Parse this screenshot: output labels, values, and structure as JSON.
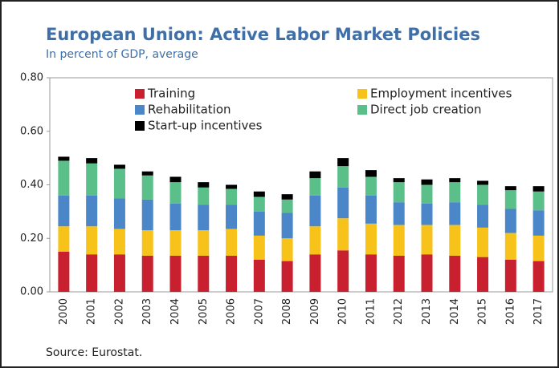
{
  "chart_data": {
    "type": "stacked_bar",
    "title": "European Union: Active Labor Market Policies",
    "subtitle": "In percent of GDP, average",
    "source": "Source: Eurostat.",
    "categories": [
      "2000",
      "2001",
      "2002",
      "2003",
      "2004",
      "2005",
      "2006",
      "2007",
      "2008",
      "2009",
      "2010",
      "2011",
      "2012",
      "2013",
      "2014",
      "2015",
      "2016",
      "2017"
    ],
    "series": [
      {
        "name": "Training",
        "color": "#c8202f",
        "values": [
          0.15,
          0.14,
          0.14,
          0.135,
          0.135,
          0.135,
          0.135,
          0.12,
          0.115,
          0.14,
          0.155,
          0.14,
          0.135,
          0.14,
          0.135,
          0.13,
          0.12,
          0.115
        ]
      },
      {
        "name": "Employment incentives",
        "color": "#f7c21a",
        "values": [
          0.095,
          0.105,
          0.095,
          0.095,
          0.095,
          0.095,
          0.1,
          0.09,
          0.085,
          0.105,
          0.12,
          0.115,
          0.115,
          0.11,
          0.115,
          0.11,
          0.1,
          0.095
        ]
      },
      {
        "name": "Rehabilitation",
        "color": "#4a86c8",
        "values": [
          0.115,
          0.115,
          0.115,
          0.115,
          0.1,
          0.095,
          0.09,
          0.09,
          0.095,
          0.115,
          0.115,
          0.105,
          0.085,
          0.08,
          0.085,
          0.085,
          0.09,
          0.095
        ]
      },
      {
        "name": "Direct job creation",
        "color": "#5bbf8a",
        "values": [
          0.13,
          0.12,
          0.11,
          0.09,
          0.08,
          0.065,
          0.06,
          0.055,
          0.05,
          0.065,
          0.08,
          0.07,
          0.075,
          0.07,
          0.075,
          0.075,
          0.07,
          0.07
        ]
      },
      {
        "name": "Start-up incentives",
        "color": "#000000",
        "values": [
          0.015,
          0.02,
          0.015,
          0.015,
          0.02,
          0.02,
          0.015,
          0.02,
          0.02,
          0.025,
          0.03,
          0.025,
          0.015,
          0.02,
          0.015,
          0.015,
          0.015,
          0.02
        ]
      }
    ],
    "ylim": [
      0,
      0.8
    ],
    "yticks": [
      {
        "value": 0,
        "label": "0.00"
      },
      {
        "value": 0.2,
        "label": "0.20"
      },
      {
        "value": 0.4,
        "label": "0.40"
      },
      {
        "value": 0.6,
        "label": "0.60"
      },
      {
        "value": 0.8,
        "label": "0.80"
      }
    ],
    "legend": "top"
  }
}
